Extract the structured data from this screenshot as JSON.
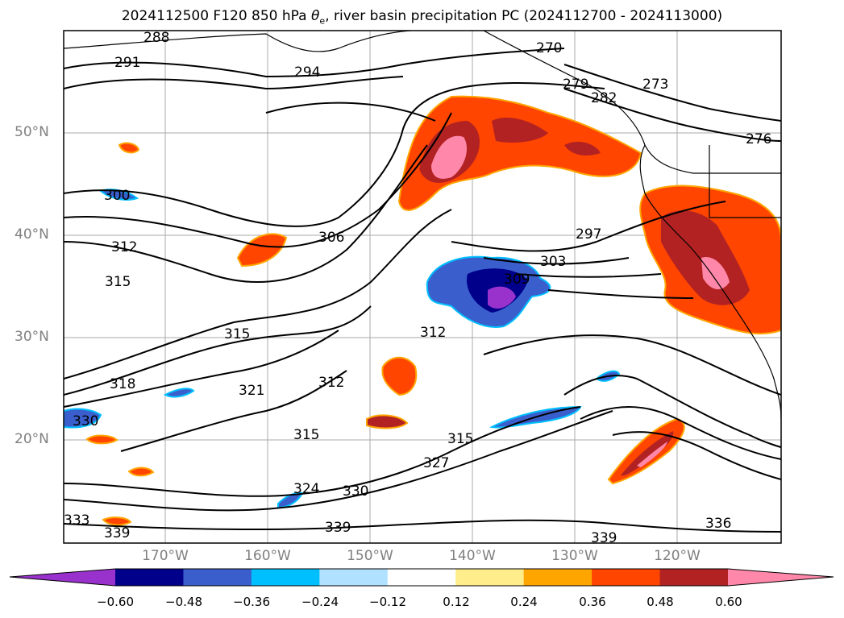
{
  "title_main": "2024112500 F120 850 hPa ",
  "title_theta": "θ",
  "title_sub": "e",
  "title_rest": ", river basin precipitation PC (2024112700 - 2024113000)",
  "lat_labels": [
    "50°N",
    "40°N",
    "30°N",
    "20°N"
  ],
  "lon_labels": [
    "170°W",
    "160°W",
    "150°W",
    "140°W",
    "130°W",
    "120°W"
  ],
  "contour_labels": [
    "288",
    "291",
    "294",
    "270",
    "273",
    "276",
    "279",
    "282",
    "297",
    "300",
    "303",
    "306",
    "309",
    "312",
    "315",
    "318",
    "321",
    "324",
    "327",
    "330",
    "333",
    "336",
    "339"
  ],
  "colorbar": {
    "ticks": [
      "−0.60",
      "−0.48",
      "−0.36",
      "−0.24",
      "−0.12",
      "0.12",
      "0.24",
      "0.36",
      "0.48",
      "0.60"
    ],
    "colors": [
      "#9932CC",
      "#00008B",
      "#3A5FCD",
      "#00BFFF",
      "#B0E2FF",
      "#FFFFFF",
      "#FFEC8B",
      "#FFA500",
      "#FF4500",
      "#B22222",
      "#FF88AA"
    ]
  }
}
